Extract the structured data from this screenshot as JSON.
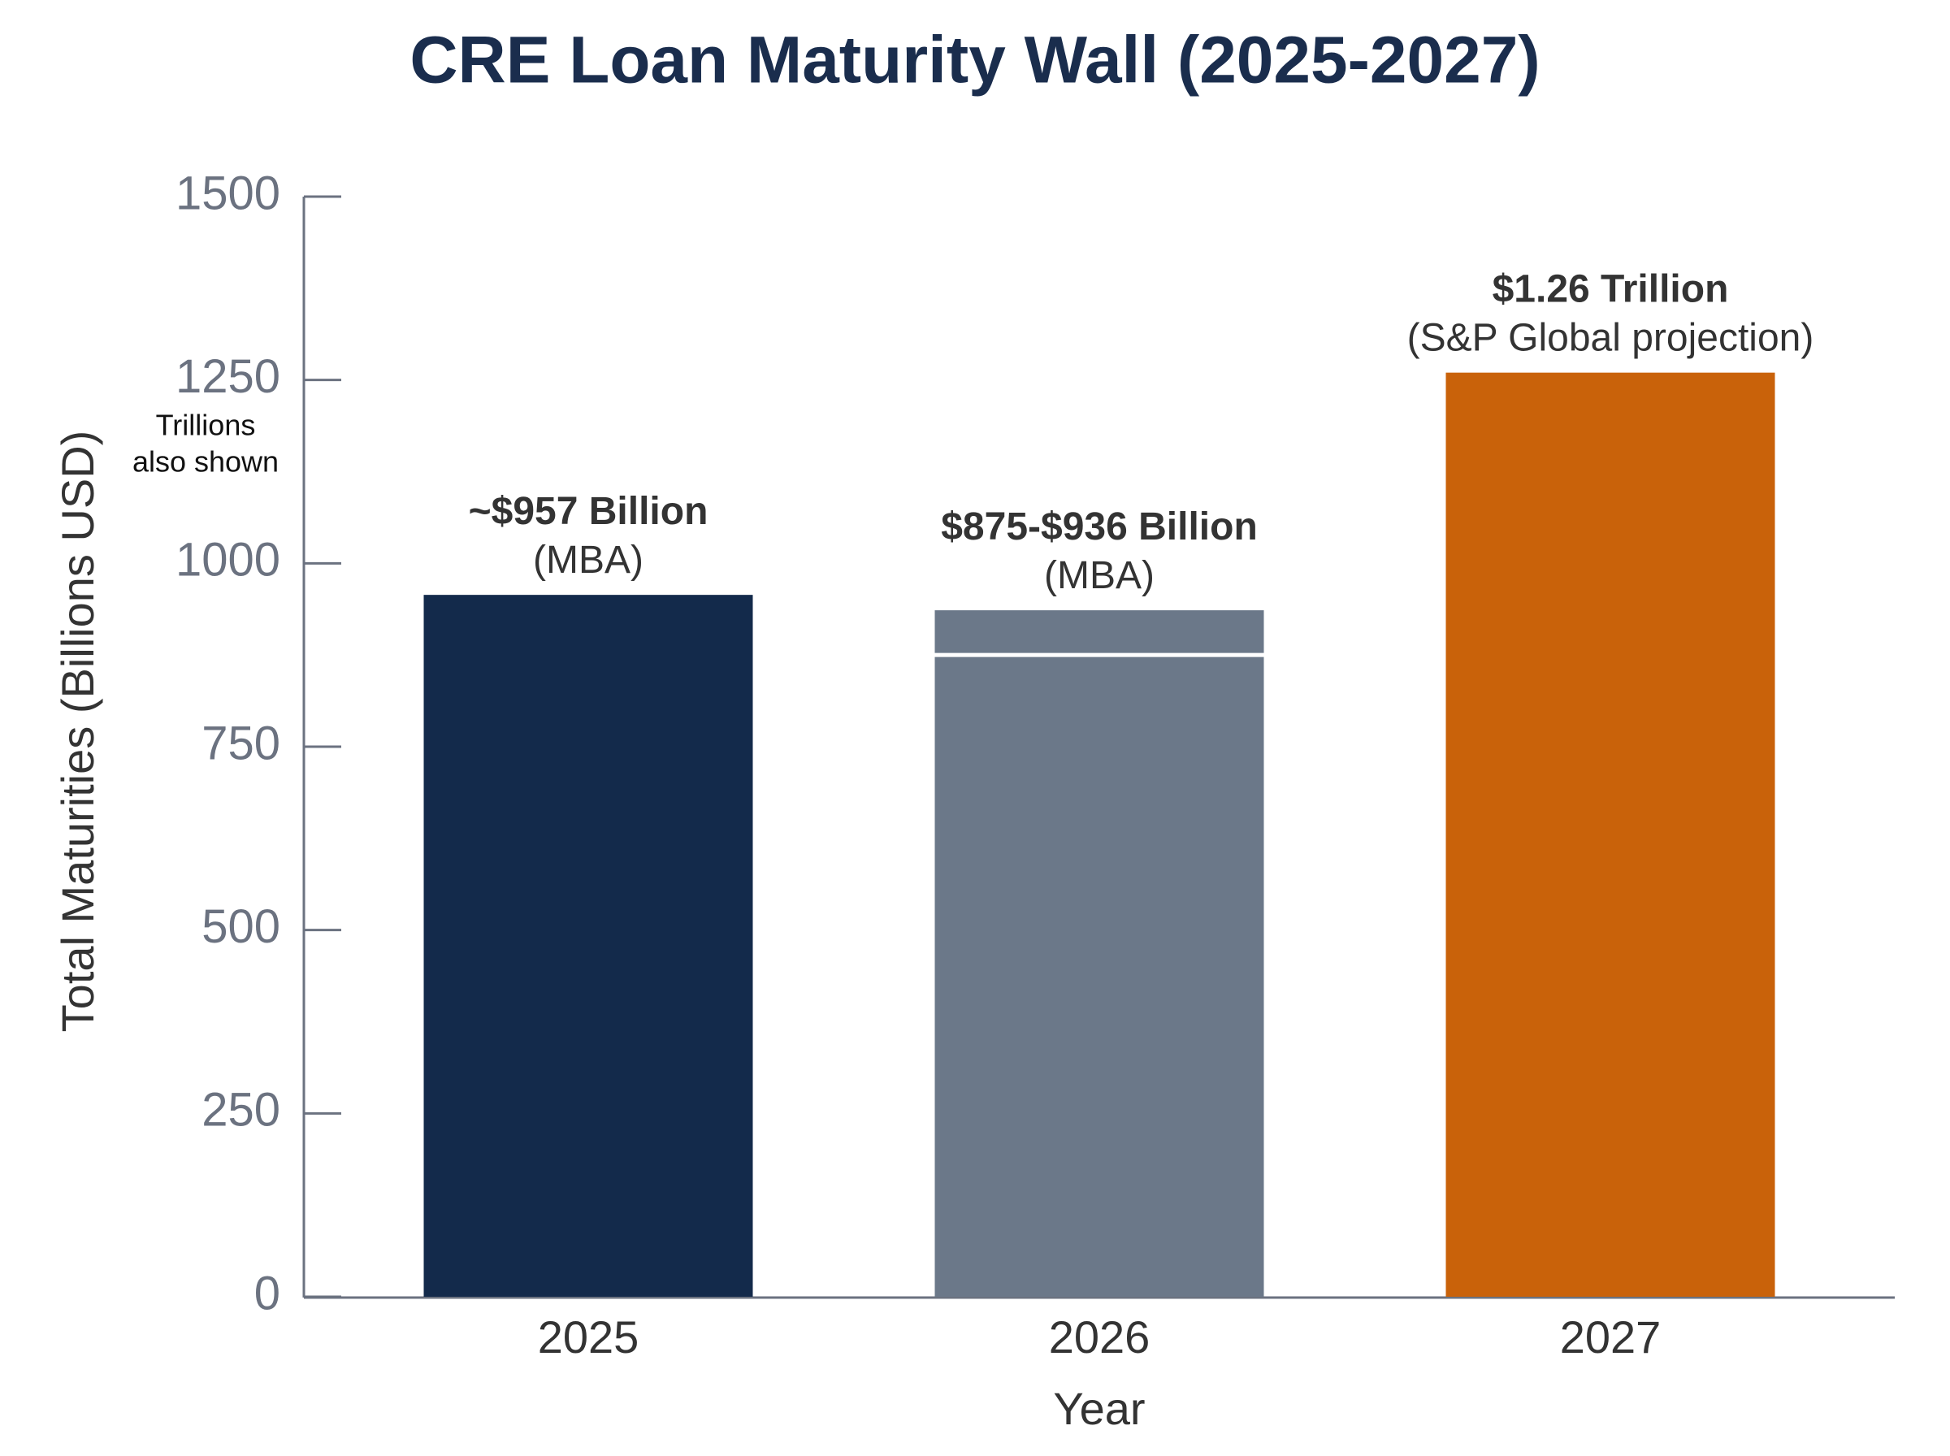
{
  "chart_data": {
    "type": "bar",
    "title": "CRE Loan Maturity Wall (2025-2027)",
    "x_label": "Year",
    "y_label": "Total Maturities (Billions USD)",
    "axis_note": [
      "Trillions",
      "also shown"
    ],
    "categories": [
      "2025",
      "2026",
      "2027"
    ],
    "values": [
      957,
      936,
      1260
    ],
    "lower_values": [
      null,
      875,
      null
    ],
    "value_labels": [
      "~$957 Billion",
      "$875-$936 Billion",
      "$1.26 Trillion"
    ],
    "value_notes": [
      "(MBA)",
      "(MBA)",
      "(S&P Global projection)"
    ],
    "colors": [
      "#132a4b",
      "#6b7889",
      "#c9620a"
    ],
    "ylim": [
      0,
      1500
    ],
    "yticks": [
      0,
      250,
      500,
      750,
      1000,
      1250,
      1500
    ],
    "grid": false
  }
}
